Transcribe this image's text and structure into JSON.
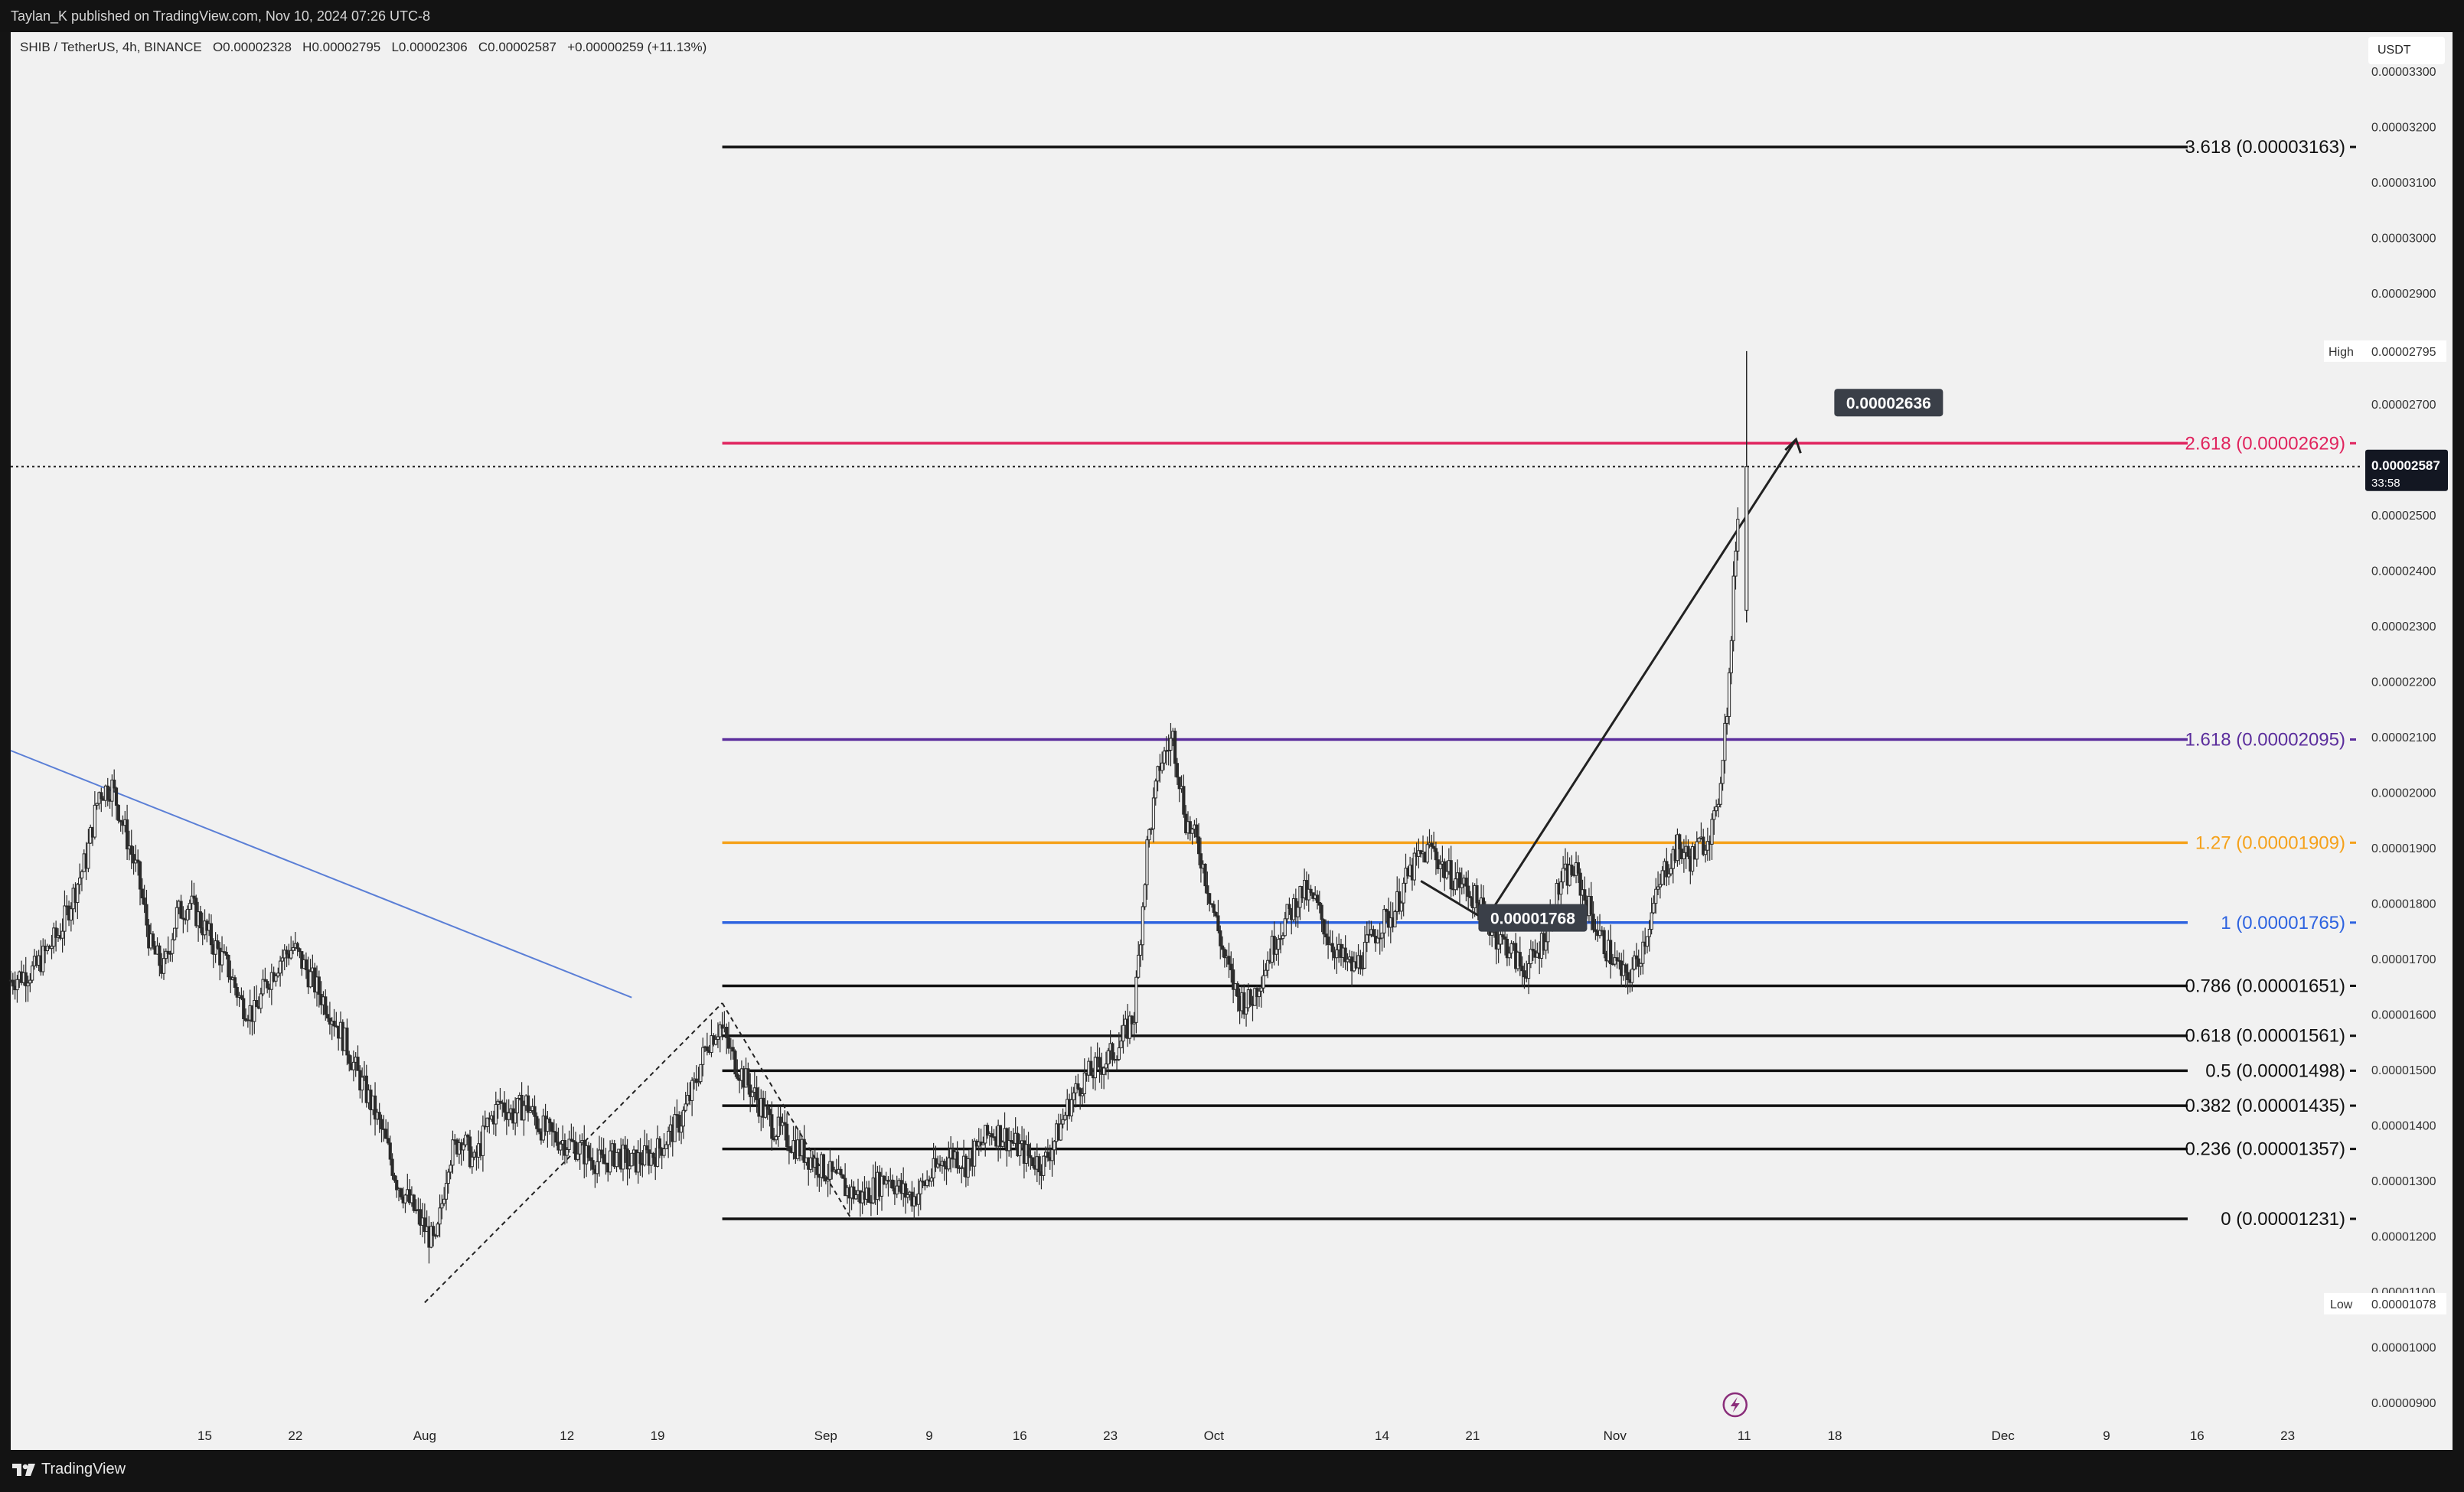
{
  "header": {
    "publisher": "Taylan_K published on TradingView.com, Nov 10, 2024 07:26 UTC-8"
  },
  "symbol_line": {
    "pair": "SHIB / TetherUS, 4h, BINANCE",
    "open": "O0.00002328",
    "high": "H0.00002795",
    "low": "L0.00002306",
    "close": "C0.00002587",
    "change": "+0.00000259 (+11.13%)"
  },
  "currency": "USDT",
  "footer": {
    "brand": "TradingView"
  },
  "colors": {
    "fib_black": "#111111",
    "fib_red": "#e0245e",
    "fib_purple": "#5b2d9c",
    "fib_orange": "#f5a11a",
    "fib_blue": "#2d63e0",
    "trendline": "#5b7fd6",
    "candle": "#2a2a2a"
  },
  "chart_data": {
    "type": "candlestick",
    "interval": "4h",
    "ylim": [
      8.6e-06,
      3.37e-05
    ],
    "y_ticks": [
      "0.00000900",
      "0.00001000",
      "0.00001100",
      "0.00001200",
      "0.00001300",
      "0.00001400",
      "0.00001500",
      "0.00001600",
      "0.00001700",
      "0.00001800",
      "0.00001900",
      "0.00002000",
      "0.00002100",
      "0.00002200",
      "0.00002300",
      "0.00002400",
      "0.00002500",
      "0.00002600",
      "0.00002700",
      "0.00002900",
      "0.00003000",
      "0.00003100",
      "0.00003200",
      "0.00003300"
    ],
    "x_ticks": [
      "15",
      "22",
      "Aug",
      "12",
      "19",
      "Sep",
      "9",
      "16",
      "23",
      "Oct",
      "14",
      "21",
      "Nov",
      "11",
      "18",
      "Dec",
      "9",
      "16",
      "23"
    ],
    "x_tick_days": [
      -17,
      -10,
      0,
      11,
      18,
      31,
      39,
      46,
      53,
      61,
      74,
      81,
      92,
      102,
      109,
      122,
      130,
      137,
      144
    ],
    "x_range_days": [
      -32,
      150
    ],
    "price_path": [
      [
        -32,
        1.66
      ],
      [
        -30,
        1.68
      ],
      [
        -28,
        1.75
      ],
      [
        -26,
        1.88
      ],
      [
        -25,
        2.0
      ],
      [
        -24,
        2.01
      ],
      [
        -23,
        1.93
      ],
      [
        -22,
        1.85
      ],
      [
        -21,
        1.72
      ],
      [
        -20,
        1.68
      ],
      [
        -19,
        1.78
      ],
      [
        -18,
        1.8
      ],
      [
        -17,
        1.76
      ],
      [
        -16,
        1.72
      ],
      [
        -15,
        1.68
      ],
      [
        -14,
        1.62
      ],
      [
        -13,
        1.6
      ],
      [
        -12,
        1.66
      ],
      [
        -11,
        1.7
      ],
      [
        -10,
        1.72
      ],
      [
        -9,
        1.68
      ],
      [
        -8,
        1.64
      ],
      [
        -7,
        1.6
      ],
      [
        -6,
        1.55
      ],
      [
        -5,
        1.49
      ],
      [
        -4,
        1.44
      ],
      [
        -3,
        1.38
      ],
      [
        -2,
        1.3
      ],
      [
        -1,
        1.26
      ],
      [
        0,
        1.22
      ],
      [
        1,
        1.18
      ],
      [
        2,
        1.34
      ],
      [
        3,
        1.38
      ],
      [
        4,
        1.33
      ],
      [
        5,
        1.4
      ],
      [
        6,
        1.44
      ],
      [
        7,
        1.42
      ],
      [
        8,
        1.44
      ],
      [
        9,
        1.4
      ],
      [
        10,
        1.38
      ],
      [
        11,
        1.37
      ],
      [
        12,
        1.36
      ],
      [
        13,
        1.34
      ],
      [
        14,
        1.33
      ],
      [
        15,
        1.35
      ],
      [
        16,
        1.33
      ],
      [
        17,
        1.34
      ],
      [
        18,
        1.35
      ],
      [
        19,
        1.38
      ],
      [
        20,
        1.41
      ],
      [
        21,
        1.47
      ],
      [
        22,
        1.55
      ],
      [
        23,
        1.58
      ],
      [
        24,
        1.52
      ],
      [
        25,
        1.48
      ],
      [
        26,
        1.44
      ],
      [
        27,
        1.4
      ],
      [
        28,
        1.38
      ],
      [
        29,
        1.36
      ],
      [
        30,
        1.34
      ],
      [
        31,
        1.32
      ],
      [
        32,
        1.3
      ],
      [
        33,
        1.28
      ],
      [
        34,
        1.27
      ],
      [
        35,
        1.29
      ],
      [
        36,
        1.31
      ],
      [
        37,
        1.28
      ],
      [
        38,
        1.27
      ],
      [
        39,
        1.3
      ],
      [
        40,
        1.33
      ],
      [
        41,
        1.35
      ],
      [
        42,
        1.33
      ],
      [
        43,
        1.36
      ],
      [
        44,
        1.39
      ],
      [
        45,
        1.38
      ],
      [
        46,
        1.36
      ],
      [
        47,
        1.34
      ],
      [
        48,
        1.33
      ],
      [
        49,
        1.38
      ],
      [
        50,
        1.44
      ],
      [
        51,
        1.48
      ],
      [
        52,
        1.5
      ],
      [
        53,
        1.52
      ],
      [
        54,
        1.55
      ],
      [
        55,
        1.6
      ],
      [
        56,
        1.9
      ],
      [
        57,
        2.05
      ],
      [
        58,
        2.1
      ],
      [
        59,
        1.95
      ],
      [
        60,
        1.9
      ],
      [
        61,
        1.8
      ],
      [
        62,
        1.7
      ],
      [
        63,
        1.63
      ],
      [
        64,
        1.62
      ],
      [
        65,
        1.68
      ],
      [
        66,
        1.74
      ],
      [
        67,
        1.78
      ],
      [
        68,
        1.82
      ],
      [
        69,
        1.8
      ],
      [
        70,
        1.74
      ],
      [
        71,
        1.7
      ],
      [
        72,
        1.68
      ],
      [
        73,
        1.72
      ],
      [
        74,
        1.76
      ],
      [
        75,
        1.78
      ],
      [
        76,
        1.84
      ],
      [
        77,
        1.88
      ],
      [
        78,
        1.9
      ],
      [
        79,
        1.86
      ],
      [
        80,
        1.84
      ],
      [
        81,
        1.82
      ],
      [
        82,
        1.78
      ],
      [
        83,
        1.74
      ],
      [
        84,
        1.72
      ],
      [
        85,
        1.68
      ],
      [
        86,
        1.7
      ],
      [
        87,
        1.76
      ],
      [
        88,
        1.84
      ],
      [
        89,
        1.86
      ],
      [
        90,
        1.8
      ],
      [
        91,
        1.74
      ],
      [
        92,
        1.7
      ],
      [
        93,
        1.66
      ],
      [
        94,
        1.7
      ],
      [
        95,
        1.78
      ],
      [
        96,
        1.86
      ],
      [
        97,
        1.9
      ],
      [
        98,
        1.88
      ],
      [
        99,
        1.91
      ],
      [
        100,
        1.95
      ],
      [
        101,
        2.2
      ],
      [
        101.5,
        2.45
      ],
      [
        102,
        2.587
      ]
    ],
    "last_candle": {
      "day": 102,
      "open": 2.328e-05,
      "high": 2.795e-05,
      "low": 2.306e-05,
      "close": 2.587e-05
    },
    "fib_levels": [
      {
        "ratio": 0,
        "price": 1.231e-05,
        "label": "0 (0.00001231)",
        "color": "black"
      },
      {
        "ratio": 0.236,
        "price": 1.357e-05,
        "label": "0.236 (0.00001357)",
        "color": "black"
      },
      {
        "ratio": 0.382,
        "price": 1.435e-05,
        "label": "0.382 (0.00001435)",
        "color": "black"
      },
      {
        "ratio": 0.5,
        "price": 1.498e-05,
        "label": "0.5 (0.00001498)",
        "color": "black"
      },
      {
        "ratio": 0.618,
        "price": 1.561e-05,
        "label": "0.618 (0.00001561)",
        "color": "black"
      },
      {
        "ratio": 0.786,
        "price": 1.651e-05,
        "label": "0.786 (0.00001651)",
        "color": "black"
      },
      {
        "ratio": 1,
        "price": 1.765e-05,
        "label": "1 (0.00001765)",
        "color": "blue"
      },
      {
        "ratio": 1.27,
        "price": 1.909e-05,
        "label": "1.27 (0.00001909)",
        "color": "orange"
      },
      {
        "ratio": 1.618,
        "price": 2.095e-05,
        "label": "1.618 (0.00002095)",
        "color": "purple"
      },
      {
        "ratio": 2.618,
        "price": 2.629e-05,
        "label": "2.618 (0.00002629)",
        "color": "red"
      },
      {
        "ratio": 3.618,
        "price": 3.163e-05,
        "label": "3.618 (0.00003163)",
        "color": "black"
      }
    ],
    "fib_start_day": 23,
    "annotations": [
      {
        "text": "0.00001768",
        "day": 85,
        "price": 1.768e-05
      },
      {
        "text": "0.00002636",
        "day": 106,
        "price": 2.636e-05
      }
    ],
    "projection_path": [
      [
        82,
        1.77e-05
      ],
      [
        106,
        2.636e-05
      ]
    ],
    "trendline": [
      [
        -32,
        2.075e-05
      ],
      [
        16,
        1.63e-05
      ]
    ],
    "dashed_lines": [
      [
        [
          0,
          1.08e-05
        ],
        [
          23,
          1.62e-05
        ]
      ],
      [
        [
          23,
          1.62e-05
        ],
        [
          33,
          1.23e-05
        ]
      ]
    ],
    "high_marker": {
      "label": "High",
      "value": "0.00002795",
      "price": 2.795e-05
    },
    "low_marker": {
      "label": "Low",
      "value": "0.00001078",
      "price": 1.078e-05
    },
    "current_price": {
      "value": "0.00002587",
      "countdown": "33:58",
      "price": 2.587e-05
    }
  }
}
